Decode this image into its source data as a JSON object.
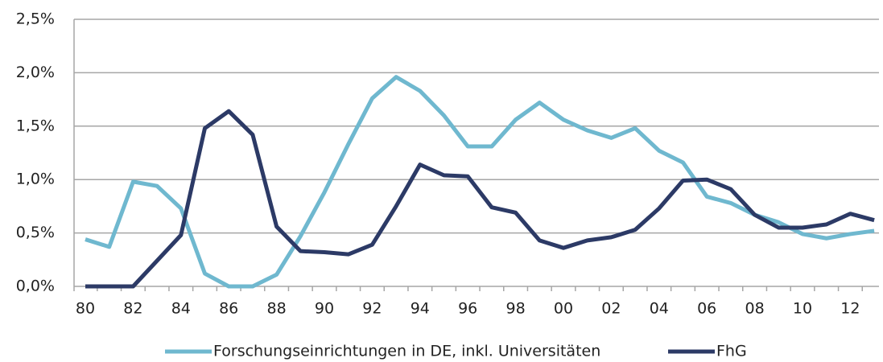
{
  "chart_data": {
    "type": "line",
    "categories": [
      "80",
      null,
      "82",
      null,
      "84",
      null,
      "86",
      null,
      "88",
      null,
      "90",
      null,
      "92",
      null,
      "94",
      null,
      "96",
      null,
      "98",
      null,
      "00",
      null,
      "02",
      null,
      "04",
      null,
      "06",
      null,
      "08",
      null,
      "10",
      null,
      "12",
      null
    ],
    "series": [
      {
        "name": "Forschungseinrichtungen in DE, inkl. Universitäten",
        "color": "#6fb8cf",
        "values": [
          0.44,
          0.37,
          0.98,
          0.94,
          0.73,
          0.12,
          0.0,
          0.0,
          0.11,
          0.47,
          0.88,
          1.33,
          1.76,
          1.96,
          1.83,
          1.6,
          1.31,
          1.31,
          1.56,
          1.72,
          1.56,
          1.46,
          1.39,
          1.48,
          1.27,
          1.16,
          0.84,
          0.78,
          0.67,
          0.6,
          0.49,
          0.45,
          0.49,
          0.52
        ]
      },
      {
        "name": "FhG",
        "color": "#2c3a66",
        "values": [
          0.0,
          0.0,
          0.0,
          0.24,
          0.48,
          1.48,
          1.64,
          1.42,
          0.56,
          0.33,
          0.32,
          0.3,
          0.39,
          0.75,
          1.14,
          1.04,
          1.03,
          0.74,
          0.69,
          0.43,
          0.36,
          0.43,
          0.46,
          0.53,
          0.73,
          0.99,
          1.0,
          0.91,
          0.67,
          0.55,
          0.55,
          0.58,
          0.68,
          0.62
        ]
      }
    ],
    "ylim": [
      0,
      2.5
    ],
    "yticks": [
      {
        "value": 0,
        "label": "0,0%"
      },
      {
        "value": 0.5,
        "label": "0,5%"
      },
      {
        "value": 1,
        "label": "1,0%"
      },
      {
        "value": 1.5,
        "label": "1,5%"
      },
      {
        "value": 2,
        "label": "2,0%"
      },
      {
        "value": 2.5,
        "label": "2,5%"
      }
    ],
    "grid": true,
    "legend": "bottom"
  }
}
